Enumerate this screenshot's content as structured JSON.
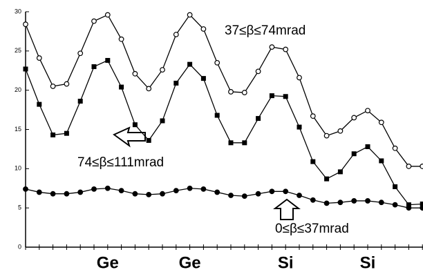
{
  "chart_data": {
    "type": "line",
    "categories": [
      null,
      null,
      null,
      null,
      null,
      null,
      "Ge",
      null,
      null,
      null,
      null,
      null,
      "Ge",
      null,
      null,
      null,
      null,
      null,
      null,
      "Si",
      null,
      null,
      null,
      null,
      null,
      "Si",
      null,
      null,
      null,
      null
    ],
    "ylim": [
      0,
      30
    ],
    "yticks": [
      0,
      5,
      10,
      15,
      20,
      25,
      30
    ],
    "series": [
      {
        "name": "37≤β≤74mrad",
        "color": "#000",
        "marker": "open-circle",
        "values": [
          28.4,
          24.1,
          20.5,
          20.8,
          24.7,
          28.8,
          29.6,
          26.5,
          22.1,
          20.2,
          22.6,
          27.1,
          29.6,
          27.8,
          23.5,
          19.8,
          19.7,
          22.4,
          25.5,
          25.2,
          21.6,
          16.7,
          14.2,
          14.8,
          16.5,
          17.4,
          15.9,
          12.6,
          10.3,
          10.3
        ]
      },
      {
        "name": "74≤β≤111mrad",
        "color": "#000",
        "marker": "square",
        "values": [
          22.7,
          18.2,
          14.3,
          14.5,
          18.6,
          23.0,
          23.8,
          20.4,
          15.6,
          13.6,
          16.1,
          20.9,
          23.3,
          21.5,
          16.8,
          13.3,
          13.3,
          16.4,
          19.3,
          19.2,
          15.3,
          10.9,
          8.7,
          9.6,
          11.9,
          12.8,
          11.0,
          7.7,
          5.4,
          5.5
        ]
      },
      {
        "name": "0≤β≤37mrad",
        "color": "#000",
        "marker": "filled-circle",
        "values": [
          7.4,
          7.0,
          6.8,
          6.8,
          7.0,
          7.4,
          7.5,
          7.2,
          6.8,
          6.7,
          6.8,
          7.2,
          7.5,
          7.4,
          7.0,
          6.6,
          6.5,
          6.8,
          7.1,
          7.1,
          6.6,
          6.0,
          5.6,
          5.7,
          5.9,
          5.9,
          5.7,
          5.4,
          5.0,
          5.0
        ]
      }
    ]
  }
}
